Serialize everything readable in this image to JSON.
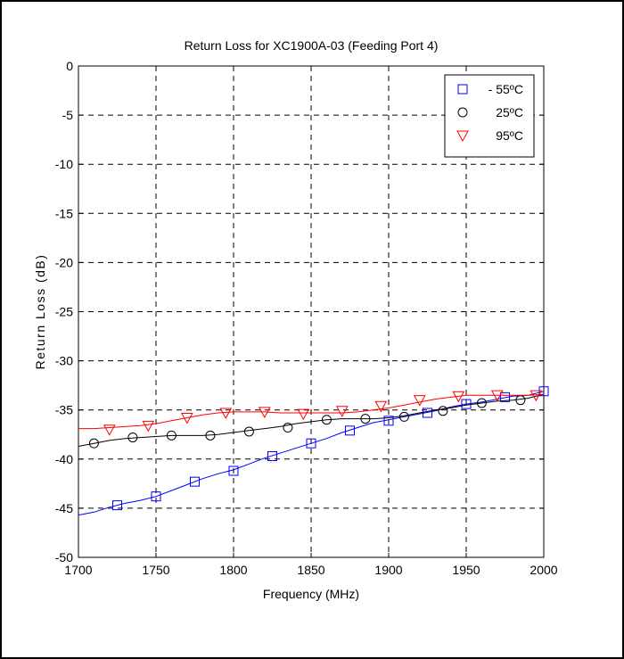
{
  "chart_data": {
    "type": "line",
    "title": "Return Loss for XC1900A-03 (Feeding Port 4)",
    "xlabel": "Frequency (MHz)",
    "ylabel": "Return Loss (dB)",
    "xlim": [
      1700,
      2000
    ],
    "ylim": [
      -50,
      0
    ],
    "xticks": [
      "1700",
      "1750",
      "1800",
      "1850",
      "1900",
      "1950",
      "2000"
    ],
    "yticks": [
      "0",
      "-5",
      "-10",
      "-15",
      "-20",
      "-25",
      "-30",
      "-35",
      "-40",
      "-45",
      "-50"
    ],
    "grid": true,
    "legend_position": "top-right",
    "series": [
      {
        "name": "- 55ºC",
        "color": "#0000ff",
        "marker": "square",
        "x": [
          1700,
          1710,
          1720,
          1730,
          1740,
          1750,
          1760,
          1770,
          1780,
          1790,
          1800,
          1810,
          1820,
          1830,
          1840,
          1850,
          1860,
          1870,
          1880,
          1890,
          1900,
          1910,
          1920,
          1930,
          1940,
          1950,
          1960,
          1970,
          1980,
          1990,
          2000
        ],
        "y": [
          -45.7,
          -45.4,
          -44.9,
          -44.5,
          -44.2,
          -43.8,
          -43.2,
          -42.6,
          -42.0,
          -41.5,
          -41.1,
          -40.5,
          -39.9,
          -39.4,
          -38.9,
          -38.4,
          -37.9,
          -37.3,
          -36.8,
          -36.3,
          -36.0,
          -35.7,
          -35.4,
          -35.1,
          -34.7,
          -34.4,
          -34.2,
          -33.9,
          -33.6,
          -33.5,
          -33.1
        ],
        "marker_x": [
          1725,
          1750,
          1775,
          1800,
          1825,
          1850,
          1875,
          1900,
          1925,
          1950,
          1975,
          2000
        ],
        "marker_y": [
          -44.7,
          -43.8,
          -42.3,
          -41.2,
          -39.7,
          -38.4,
          -37.1,
          -36.1,
          -35.3,
          -34.4,
          -33.7,
          -33.1
        ]
      },
      {
        "name": "25ºC",
        "color": "#000000",
        "marker": "circle",
        "x": [
          1700,
          1710,
          1720,
          1730,
          1740,
          1750,
          1760,
          1770,
          1780,
          1790,
          1800,
          1810,
          1820,
          1830,
          1840,
          1850,
          1860,
          1870,
          1880,
          1890,
          1900,
          1910,
          1920,
          1930,
          1940,
          1950,
          1960,
          1970,
          1980,
          1990,
          2000
        ],
        "y": [
          -38.7,
          -38.4,
          -38.1,
          -37.9,
          -37.8,
          -37.7,
          -37.6,
          -37.6,
          -37.6,
          -37.5,
          -37.3,
          -37.1,
          -36.9,
          -36.7,
          -36.4,
          -36.2,
          -36.0,
          -35.9,
          -35.9,
          -35.9,
          -35.8,
          -35.6,
          -35.3,
          -35.0,
          -34.8,
          -34.5,
          -34.3,
          -34.1,
          -34.0,
          -33.8,
          -33.4
        ],
        "marker_x": [
          1710,
          1735,
          1760,
          1785,
          1810,
          1835,
          1860,
          1885,
          1910,
          1935,
          1960,
          1985
        ],
        "marker_y": [
          -38.4,
          -37.8,
          -37.6,
          -37.6,
          -37.2,
          -36.8,
          -36.0,
          -35.9,
          -35.7,
          -35.1,
          -34.3,
          -34.0
        ]
      },
      {
        "name": "95ºC",
        "color": "#ff0000",
        "marker": "triangle-down",
        "x": [
          1700,
          1710,
          1720,
          1730,
          1740,
          1750,
          1760,
          1770,
          1780,
          1790,
          1800,
          1810,
          1820,
          1830,
          1840,
          1850,
          1860,
          1870,
          1880,
          1890,
          1900,
          1910,
          1920,
          1930,
          1940,
          1950,
          1960,
          1970,
          1980,
          1990,
          2000
        ],
        "y": [
          -36.9,
          -36.9,
          -36.8,
          -36.7,
          -36.6,
          -36.4,
          -36.1,
          -35.8,
          -35.5,
          -35.3,
          -35.2,
          -35.2,
          -35.2,
          -35.3,
          -35.3,
          -35.3,
          -35.3,
          -35.3,
          -35.2,
          -35.0,
          -34.8,
          -34.5,
          -34.2,
          -33.9,
          -33.7,
          -33.5,
          -33.5,
          -33.5,
          -33.5,
          -33.5,
          -33.4
        ],
        "marker_x": [
          1720,
          1745,
          1770,
          1795,
          1820,
          1845,
          1870,
          1895,
          1920,
          1945,
          1970,
          1995
        ],
        "marker_y": [
          -37.0,
          -36.6,
          -35.8,
          -35.3,
          -35.2,
          -35.4,
          -35.1,
          -34.6,
          -34.0,
          -33.6,
          -33.5,
          -33.5
        ]
      }
    ]
  }
}
